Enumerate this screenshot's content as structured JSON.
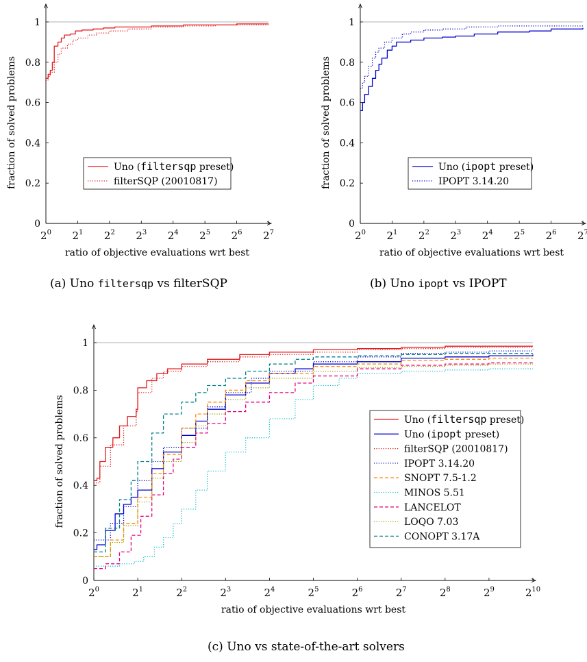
{
  "captions": {
    "a": {
      "prefix": "(a) Uno ",
      "code": "filtersqp",
      "suffix": " vs filterSQP"
    },
    "b": {
      "prefix": "(b) Uno ",
      "code": "ipopt",
      "suffix": " vs IPOPT"
    },
    "c": {
      "text": "(c) Uno vs state-of-the-art solvers"
    }
  },
  "chart_data": [
    {
      "type": "line",
      "id": "a",
      "xlabel": "ratio of objective evaluations wrt best",
      "ylabel": "fraction of solved problems",
      "x_scale": "log2",
      "xlim": [
        1,
        128
      ],
      "ylim": [
        0,
        1
      ],
      "xticks": [
        1,
        2,
        4,
        8,
        16,
        32,
        64,
        128
      ],
      "xtick_labels": [
        "2^0",
        "2^1",
        "2^2",
        "2^3",
        "2^4",
        "2^5",
        "2^6",
        "2^7"
      ],
      "yticks": [
        0,
        0.2,
        0.4,
        0.6,
        0.8,
        1
      ],
      "ytick_labels": [
        "0",
        "0.2",
        "0.4",
        "0.6",
        "0.8",
        "1"
      ],
      "reference_line": 1,
      "legend_position": "lower center",
      "series": [
        {
          "name": "Uno (filtersqp preset)",
          "color": "#e41a1c",
          "style": "solid",
          "x": [
            1,
            1.05,
            1.1,
            1.15,
            1.2,
            1.3,
            1.4,
            1.5,
            1.7,
            1.9,
            2.2,
            2.8,
            3.5,
            4.5,
            6,
            10,
            20,
            32,
            64,
            128
          ],
          "y": [
            0.72,
            0.74,
            0.76,
            0.8,
            0.88,
            0.9,
            0.92,
            0.935,
            0.94,
            0.955,
            0.96,
            0.965,
            0.97,
            0.975,
            0.975,
            0.98,
            0.985,
            0.985,
            0.99,
            0.99
          ]
        },
        {
          "name": "filterSQP (20010817)",
          "color": "#e41a1c",
          "style": "dotted",
          "x": [
            1,
            1.05,
            1.1,
            1.2,
            1.3,
            1.4,
            1.6,
            1.8,
            2,
            2.5,
            3,
            4,
            6,
            10,
            20,
            40,
            64,
            128
          ],
          "y": [
            0.71,
            0.73,
            0.75,
            0.8,
            0.84,
            0.87,
            0.89,
            0.91,
            0.92,
            0.935,
            0.945,
            0.955,
            0.965,
            0.975,
            0.98,
            0.985,
            0.985,
            0.985
          ]
        }
      ]
    },
    {
      "type": "line",
      "id": "b",
      "xlabel": "ratio of objective evaluations wrt best",
      "ylabel": "fraction of solved problems",
      "x_scale": "log2",
      "xlim": [
        1,
        128
      ],
      "ylim": [
        0,
        1
      ],
      "xticks": [
        1,
        2,
        4,
        8,
        16,
        32,
        64,
        128
      ],
      "xtick_labels": [
        "2^0",
        "2^1",
        "2^2",
        "2^3",
        "2^4",
        "2^5",
        "2^6",
        "2^7"
      ],
      "yticks": [
        0,
        0.2,
        0.4,
        0.6,
        0.8,
        1
      ],
      "ytick_labels": [
        "0",
        "0.2",
        "0.4",
        "0.6",
        "0.8",
        "1"
      ],
      "reference_line": 1,
      "legend_position": "lower center",
      "series": [
        {
          "name": "Uno (ipopt preset)",
          "color": "#0000cc",
          "style": "solid",
          "x": [
            1,
            1.05,
            1.1,
            1.2,
            1.3,
            1.4,
            1.5,
            1.6,
            1.8,
            2,
            2.2,
            2.5,
            3,
            4,
            6,
            8,
            12,
            20,
            40,
            64,
            128
          ],
          "y": [
            0.56,
            0.6,
            0.64,
            0.68,
            0.72,
            0.76,
            0.79,
            0.82,
            0.86,
            0.88,
            0.9,
            0.9,
            0.91,
            0.92,
            0.925,
            0.93,
            0.94,
            0.95,
            0.955,
            0.965,
            0.97
          ]
        },
        {
          "name": "IPOPT 3.14.20",
          "color": "#0000cc",
          "style": "dotted",
          "x": [
            1,
            1.05,
            1.1,
            1.2,
            1.3,
            1.4,
            1.5,
            1.7,
            2,
            2.5,
            3,
            4,
            6,
            10,
            20,
            40,
            128
          ],
          "y": [
            0.67,
            0.7,
            0.73,
            0.78,
            0.82,
            0.85,
            0.87,
            0.9,
            0.92,
            0.94,
            0.95,
            0.96,
            0.965,
            0.975,
            0.98,
            0.98,
            0.985
          ]
        }
      ]
    },
    {
      "type": "line",
      "id": "c",
      "xlabel": "ratio of objective evaluations wrt best",
      "ylabel": "fraction of solved problems",
      "x_scale": "log2",
      "xlim": [
        1,
        1024
      ],
      "ylim": [
        0,
        1
      ],
      "xticks": [
        1,
        2,
        4,
        8,
        16,
        32,
        64,
        128,
        256,
        512,
        1024
      ],
      "xtick_labels": [
        "2^0",
        "2^1",
        "2^2",
        "2^3",
        "2^4",
        "2^5",
        "2^6",
        "2^7",
        "2^8",
        "2^9",
        "2^10"
      ],
      "yticks": [
        0,
        0.2,
        0.4,
        0.6,
        0.8,
        1
      ],
      "ytick_labels": [
        "0",
        "0.2",
        "0.4",
        "0.6",
        "0.8",
        "1"
      ],
      "reference_line": 1,
      "legend_position": "right",
      "series": [
        {
          "name": "Uno (filtersqp preset)",
          "color": "#e41a1c",
          "style": "solid",
          "x": [
            1,
            1.05,
            1.1,
            1.2,
            1.35,
            1.5,
            1.7,
            1.95,
            2,
            2.3,
            2.7,
            3.2,
            4,
            6,
            10,
            16,
            32,
            64,
            128,
            256,
            512,
            1024
          ],
          "y": [
            0.42,
            0.43,
            0.5,
            0.56,
            0.6,
            0.65,
            0.69,
            0.72,
            0.81,
            0.84,
            0.87,
            0.89,
            0.91,
            0.93,
            0.95,
            0.96,
            0.97,
            0.975,
            0.98,
            0.985,
            0.985,
            0.985
          ]
        },
        {
          "name": "Uno (ipopt preset)",
          "color": "#0000cc",
          "style": "solid",
          "x": [
            1,
            1.05,
            1.2,
            1.4,
            1.6,
            1.8,
            2,
            2.5,
            3,
            4,
            5,
            6,
            8,
            11,
            16,
            24,
            32,
            64,
            128,
            256,
            512,
            1024
          ],
          "y": [
            0.13,
            0.15,
            0.21,
            0.28,
            0.32,
            0.35,
            0.38,
            0.47,
            0.54,
            0.61,
            0.67,
            0.72,
            0.78,
            0.83,
            0.87,
            0.89,
            0.91,
            0.92,
            0.935,
            0.94,
            0.945,
            0.95
          ]
        },
        {
          "name": "filterSQP (20010817)",
          "color": "#e41a1c",
          "style": "dotted",
          "x": [
            1,
            1.1,
            1.3,
            1.6,
            1.95,
            2,
            2.5,
            3,
            4,
            6,
            10,
            16,
            32,
            64,
            128,
            256,
            512,
            1024
          ],
          "y": [
            0.41,
            0.48,
            0.57,
            0.65,
            0.71,
            0.79,
            0.85,
            0.88,
            0.9,
            0.92,
            0.94,
            0.95,
            0.96,
            0.97,
            0.975,
            0.98,
            0.98,
            0.98
          ]
        },
        {
          "name": "IPOPT 3.14.20",
          "color": "#0000cc",
          "style": "dotted",
          "x": [
            1,
            1.3,
            1.6,
            2,
            2.5,
            3,
            4,
            6,
            8,
            12,
            16,
            32,
            64,
            128,
            256,
            512,
            1024
          ],
          "y": [
            0.17,
            0.24,
            0.31,
            0.42,
            0.5,
            0.56,
            0.64,
            0.73,
            0.79,
            0.85,
            0.88,
            0.92,
            0.94,
            0.955,
            0.96,
            0.965,
            0.97
          ]
        },
        {
          "name": "SNOPT 7.5-1.2",
          "color": "#ff8800",
          "style": "dashed",
          "x": [
            1,
            1.3,
            1.6,
            2,
            2.5,
            3,
            4,
            5,
            6,
            8,
            11,
            16,
            32,
            64,
            128,
            256,
            512,
            1024
          ],
          "y": [
            0.1,
            0.17,
            0.24,
            0.35,
            0.45,
            0.53,
            0.64,
            0.7,
            0.75,
            0.8,
            0.84,
            0.87,
            0.9,
            0.91,
            0.925,
            0.93,
            0.935,
            0.935
          ]
        },
        {
          "name": "MINOS 5.51",
          "color": "#17becf",
          "style": "dotted",
          "x": [
            1,
            1.5,
            1.9,
            2.2,
            2.6,
            3,
            3.5,
            4,
            5,
            6,
            8,
            11,
            16,
            24,
            32,
            48,
            64,
            128,
            256,
            512,
            1024
          ],
          "y": [
            0.06,
            0.07,
            0.08,
            0.1,
            0.14,
            0.18,
            0.24,
            0.3,
            0.38,
            0.46,
            0.54,
            0.6,
            0.68,
            0.76,
            0.82,
            0.85,
            0.87,
            0.88,
            0.885,
            0.89,
            0.89
          ]
        },
        {
          "name": "LANCELOT",
          "color": "#e6007e",
          "style": "dashed",
          "x": [
            1,
            1.2,
            1.5,
            1.8,
            2.1,
            2.5,
            3,
            3.5,
            4,
            5,
            6,
            8,
            11,
            16,
            24,
            32,
            64,
            128,
            256,
            512,
            1024
          ],
          "y": [
            0.05,
            0.07,
            0.12,
            0.19,
            0.27,
            0.36,
            0.45,
            0.51,
            0.56,
            0.62,
            0.66,
            0.71,
            0.75,
            0.79,
            0.83,
            0.86,
            0.89,
            0.905,
            0.91,
            0.915,
            0.915
          ]
        },
        {
          "name": "LOQO 7.03",
          "color": "#9a9a00",
          "style": "dotted",
          "x": [
            1,
            1.3,
            1.6,
            2,
            2.5,
            3,
            4,
            5,
            6,
            8,
            11,
            16,
            32,
            64,
            128,
            256,
            512,
            1024
          ],
          "y": [
            0.1,
            0.16,
            0.23,
            0.33,
            0.43,
            0.5,
            0.58,
            0.65,
            0.7,
            0.76,
            0.81,
            0.85,
            0.88,
            0.895,
            0.9,
            0.905,
            0.91,
            0.91
          ]
        },
        {
          "name": "CONOPT 3.17A",
          "color": "#00808a",
          "style": "dashed",
          "x": [
            1,
            1.2,
            1.5,
            1.8,
            2,
            2.5,
            3,
            4,
            5,
            6,
            8,
            11,
            16,
            24,
            32,
            64,
            128,
            256,
            512,
            1024
          ],
          "y": [
            0.12,
            0.22,
            0.34,
            0.42,
            0.5,
            0.62,
            0.7,
            0.75,
            0.79,
            0.82,
            0.85,
            0.88,
            0.91,
            0.93,
            0.94,
            0.945,
            0.95,
            0.955,
            0.955,
            0.955
          ]
        }
      ]
    }
  ]
}
